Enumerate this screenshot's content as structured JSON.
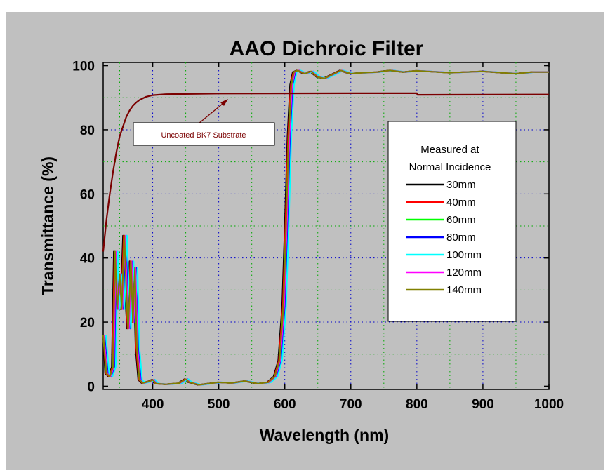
{
  "chart_data": {
    "type": "line",
    "title": "AAO Dichroic Filter",
    "xlabel": "Wavelength (nm)",
    "ylabel": "Transmittance (%)",
    "xlim": [
      325,
      1000
    ],
    "ylim": [
      -1,
      101
    ],
    "x_ticks": [
      "400",
      "500",
      "600",
      "700",
      "800",
      "900",
      "1000"
    ],
    "y_ticks": [
      "0",
      "20",
      "40",
      "60",
      "80",
      "100"
    ],
    "grid": true,
    "legend_title_lines": [
      "Measured at",
      "Normal Incidence"
    ],
    "legend_placement": "right-middle",
    "annotation": {
      "text": "Uncoated BK7 Substrate",
      "points_to": {
        "x": 515,
        "y": 91
      },
      "color": "#7b0000"
    },
    "substrate": {
      "color": "#7b0000",
      "points": [
        [
          325,
          42
        ],
        [
          330,
          52
        ],
        [
          335,
          60
        ],
        [
          340,
          67
        ],
        [
          345,
          73
        ],
        [
          350,
          78
        ],
        [
          355,
          81
        ],
        [
          360,
          84
        ],
        [
          365,
          86
        ],
        [
          370,
          87.5
        ],
        [
          375,
          88.5
        ],
        [
          380,
          89.3
        ],
        [
          390,
          90.3
        ],
        [
          400,
          90.8
        ],
        [
          420,
          91.1
        ],
        [
          500,
          91.3
        ],
        [
          700,
          91.4
        ],
        [
          800,
          91.4
        ],
        [
          801,
          90.9
        ],
        [
          1000,
          91.0
        ]
      ]
    },
    "base_curve": [
      [
        325,
        16
      ],
      [
        330,
        4
      ],
      [
        335,
        3
      ],
      [
        340,
        6
      ],
      [
        343,
        42
      ],
      [
        346,
        24
      ],
      [
        350,
        35
      ],
      [
        353,
        24
      ],
      [
        357,
        47
      ],
      [
        360,
        30
      ],
      [
        363,
        18
      ],
      [
        367,
        39
      ],
      [
        370,
        20
      ],
      [
        373,
        37
      ],
      [
        376,
        12
      ],
      [
        380,
        2
      ],
      [
        385,
        1
      ],
      [
        395,
        1.5
      ],
      [
        400,
        2
      ],
      [
        405,
        0.8
      ],
      [
        420,
        0.6
      ],
      [
        440,
        0.9
      ],
      [
        450,
        2.2
      ],
      [
        455,
        1.3
      ],
      [
        470,
        0.4
      ],
      [
        500,
        1.2
      ],
      [
        520,
        1.0
      ],
      [
        540,
        1.6
      ],
      [
        560,
        0.8
      ],
      [
        575,
        1.2
      ],
      [
        585,
        3
      ],
      [
        592,
        8
      ],
      [
        598,
        25
      ],
      [
        602,
        50
      ],
      [
        606,
        78
      ],
      [
        610,
        94
      ],
      [
        614,
        98
      ],
      [
        620,
        98.5
      ],
      [
        630,
        97.5
      ],
      [
        640,
        98.2
      ],
      [
        650,
        96.5
      ],
      [
        660,
        96
      ],
      [
        670,
        97
      ],
      [
        685,
        98.5
      ],
      [
        700,
        97.5
      ],
      [
        720,
        97.8
      ],
      [
        740,
        98
      ],
      [
        760,
        98.5
      ],
      [
        780,
        98
      ],
      [
        800,
        98.4
      ],
      [
        850,
        97.8
      ],
      [
        900,
        98.2
      ],
      [
        950,
        97.5
      ],
      [
        975,
        98
      ],
      [
        1000,
        98
      ]
    ],
    "series": [
      {
        "name": "30mm",
        "color": "#000000",
        "shift": -2
      },
      {
        "name": "40mm",
        "color": "#ff0000",
        "shift": -1
      },
      {
        "name": "60mm",
        "color": "#00ff00",
        "shift": 0
      },
      {
        "name": "80mm",
        "color": "#0000ff",
        "shift": 3
      },
      {
        "name": "100mm",
        "color": "#00ffff",
        "shift": 4
      },
      {
        "name": "120mm",
        "color": "#ff00ff",
        "shift": 1
      },
      {
        "name": "140mm",
        "color": "#808000",
        "shift": 0
      }
    ]
  }
}
